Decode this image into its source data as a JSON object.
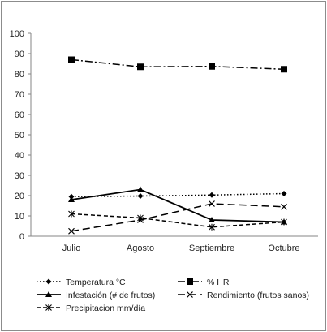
{
  "chart_data": {
    "type": "line",
    "title": "",
    "xlabel": "",
    "ylabel": "",
    "categories": [
      "Julio",
      "Agosto",
      "Septiembre",
      "Octubre"
    ],
    "ylim": [
      0,
      100
    ],
    "yticks": [
      "0",
      "10",
      "20",
      "30",
      "40",
      "50",
      "60",
      "70",
      "80",
      "90",
      "100"
    ],
    "grid": false,
    "legend_position": "bottom",
    "series": [
      {
        "name": "Temperatura °C",
        "values": [
          19.5,
          19.8,
          20.3,
          21.0
        ],
        "color": "#000000",
        "line_style": "dotted",
        "marker": "diamond"
      },
      {
        "name": "% HR",
        "values": [
          87.0,
          83.5,
          83.7,
          82.3
        ],
        "color": "#000000",
        "line_style": "dash-dot",
        "marker": "square"
      },
      {
        "name": "Infestación (# de frutos)",
        "values": [
          18.0,
          23.0,
          8.0,
          7.0
        ],
        "color": "#000000",
        "line_style": "solid",
        "marker": "triangle"
      },
      {
        "name": "Rendimiento (frutos sanos)",
        "values": [
          2.5,
          8.0,
          16.0,
          14.5
        ],
        "color": "#000000",
        "line_style": "long-dash",
        "marker": "x"
      },
      {
        "name": "Precipitacion mm/día",
        "values": [
          11.0,
          9.0,
          4.5,
          7.0
        ],
        "color": "#000000",
        "line_style": "short-dash",
        "marker": "star"
      }
    ]
  }
}
